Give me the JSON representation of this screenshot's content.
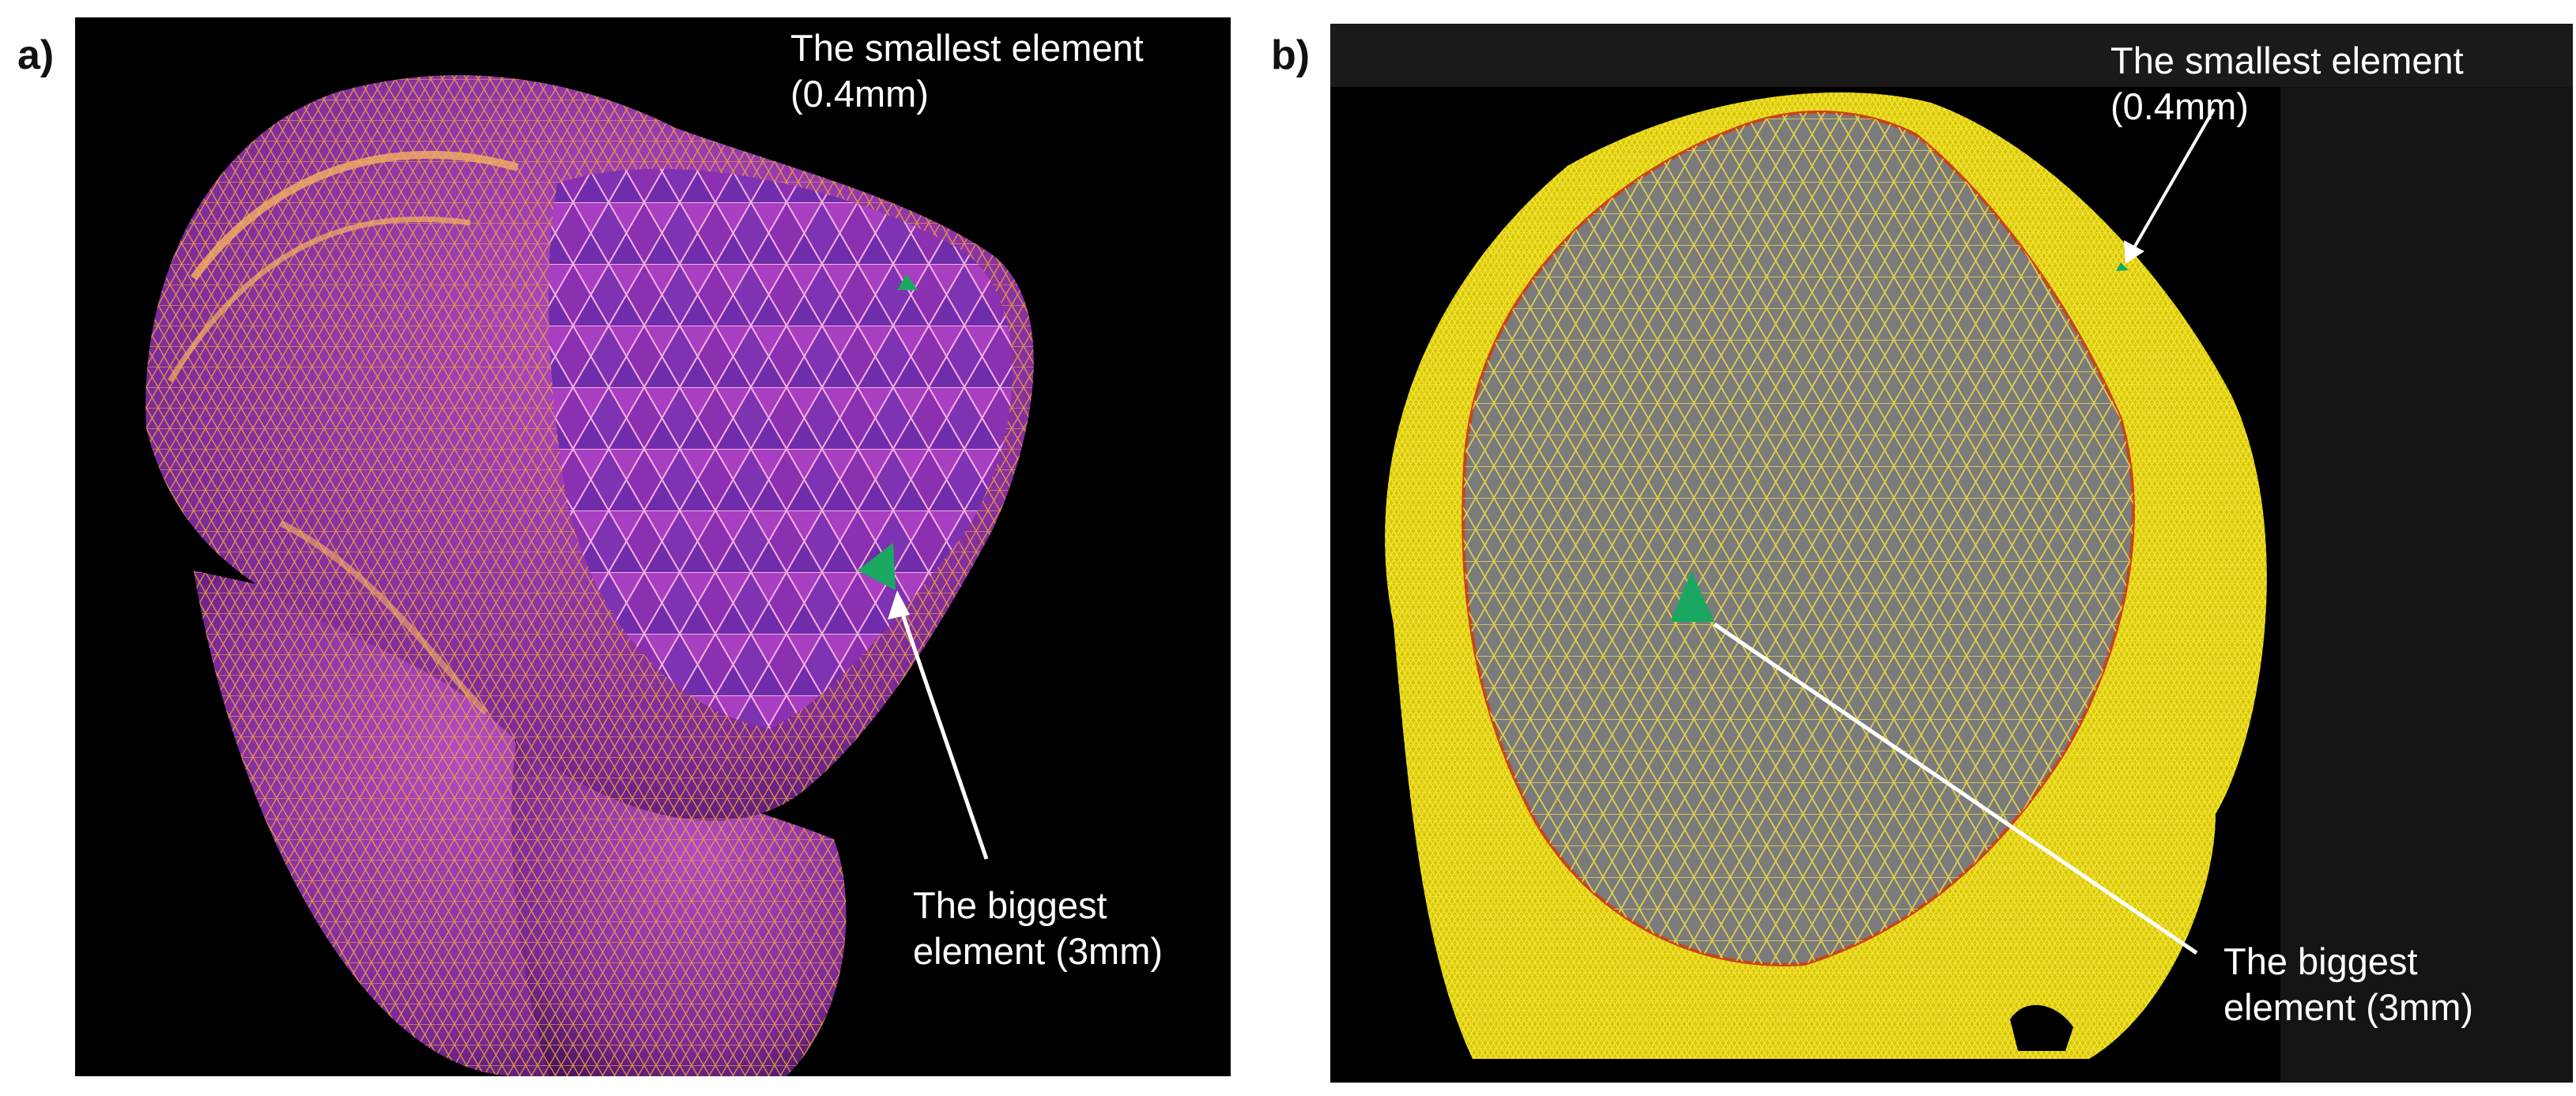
{
  "figure": {
    "panel_a": {
      "label": "a)",
      "annotation_smallest": [
        "The smallest element",
        "(0.4mm)"
      ],
      "annotation_biggest": [
        "The biggest",
        "element (3mm)"
      ],
      "colors": {
        "background": "#000000",
        "surface": "#8a2fa8",
        "mesh_lines": "#f0a040",
        "element_highlight": "#1aa860"
      }
    },
    "panel_b": {
      "label": "b)",
      "annotation_smallest": [
        "The smallest element",
        "(0.4mm)"
      ],
      "annotation_biggest": [
        "The biggest",
        "element (3mm)"
      ],
      "colors": {
        "background": "#000000",
        "surface": "#7a7a7a",
        "mesh_lines": "#f2e23a",
        "element_highlight": "#1aa860"
      }
    }
  }
}
